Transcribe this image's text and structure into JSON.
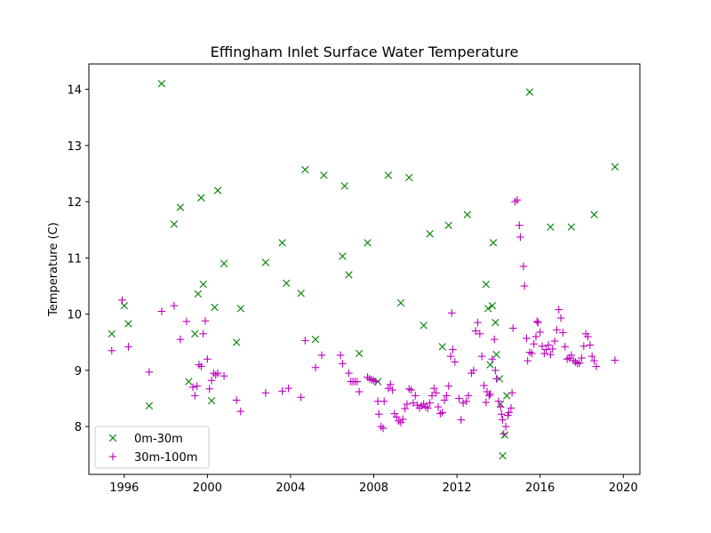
{
  "chart_data": {
    "type": "scatter",
    "title": "Effingham Inlet Surface Water Temperature",
    "xlabel": "",
    "ylabel": "Temperature (C)",
    "xlim": [
      1994.3,
      2020.8
    ],
    "ylim": [
      7.15,
      14.45
    ],
    "x_ticks": [
      1996,
      2000,
      2004,
      2008,
      2012,
      2016,
      2020
    ],
    "x_tick_labels": [
      "1996",
      "2000",
      "2004",
      "2008",
      "2012",
      "2016",
      "2020"
    ],
    "y_ticks": [
      8,
      9,
      10,
      11,
      12,
      13,
      14
    ],
    "y_tick_labels": [
      "8",
      "9",
      "10",
      "11",
      "12",
      "13",
      "14"
    ],
    "grid": false,
    "legend_position": "lower-left",
    "series": [
      {
        "name": "0m-30m",
        "marker": "x",
        "color": "#008000",
        "points": [
          [
            1995.4,
            9.65
          ],
          [
            1996.0,
            10.15
          ],
          [
            1996.2,
            9.83
          ],
          [
            1997.2,
            8.37
          ],
          [
            1997.8,
            14.1
          ],
          [
            1998.4,
            11.6
          ],
          [
            1998.7,
            11.9
          ],
          [
            1999.1,
            8.8
          ],
          [
            1999.4,
            9.65
          ],
          [
            1999.55,
            10.36
          ],
          [
            1999.7,
            12.07
          ],
          [
            1999.8,
            10.53
          ],
          [
            2000.2,
            8.46
          ],
          [
            2000.35,
            10.12
          ],
          [
            2000.5,
            12.2
          ],
          [
            2000.8,
            10.9
          ],
          [
            2001.4,
            9.5
          ],
          [
            2001.6,
            10.1
          ],
          [
            2002.8,
            10.92
          ],
          [
            2003.6,
            11.27
          ],
          [
            2003.8,
            10.55
          ],
          [
            2004.5,
            10.37
          ],
          [
            2004.7,
            12.57
          ],
          [
            2005.2,
            9.55
          ],
          [
            2005.6,
            12.47
          ],
          [
            2006.5,
            11.03
          ],
          [
            2006.6,
            12.28
          ],
          [
            2006.8,
            10.7
          ],
          [
            2007.3,
            9.3
          ],
          [
            2007.7,
            11.27
          ],
          [
            2008.2,
            8.8
          ],
          [
            2008.7,
            12.47
          ],
          [
            2009.3,
            10.2
          ],
          [
            2009.7,
            12.43
          ],
          [
            2010.4,
            9.8
          ],
          [
            2010.7,
            11.43
          ],
          [
            2011.3,
            9.42
          ],
          [
            2011.6,
            11.58
          ],
          [
            2012.5,
            11.77
          ],
          [
            2013.4,
            10.53
          ],
          [
            2013.5,
            10.1
          ],
          [
            2013.6,
            9.1
          ],
          [
            2013.7,
            10.15
          ],
          [
            2013.75,
            11.27
          ],
          [
            2013.85,
            9.85
          ],
          [
            2013.9,
            9.28
          ],
          [
            2014.05,
            8.85
          ],
          [
            2014.1,
            8.4
          ],
          [
            2014.2,
            7.48
          ],
          [
            2014.3,
            7.85
          ],
          [
            2014.4,
            8.55
          ],
          [
            2015.5,
            13.95
          ],
          [
            2016.5,
            11.55
          ],
          [
            2017.5,
            11.55
          ],
          [
            2018.6,
            11.77
          ],
          [
            2019.6,
            12.62
          ]
        ]
      },
      {
        "name": "30m-100m",
        "marker": "+",
        "color": "#bf00bf",
        "points": [
          [
            1995.4,
            9.35
          ],
          [
            1995.9,
            10.25
          ],
          [
            1996.2,
            9.42
          ],
          [
            1997.2,
            8.97
          ],
          [
            1997.8,
            10.05
          ],
          [
            1998.4,
            10.15
          ],
          [
            1998.7,
            9.55
          ],
          [
            1999.0,
            9.87
          ],
          [
            1999.3,
            8.7
          ],
          [
            1999.4,
            8.55
          ],
          [
            1999.5,
            8.72
          ],
          [
            1999.6,
            9.1
          ],
          [
            1999.7,
            9.07
          ],
          [
            1999.8,
            9.65
          ],
          [
            1999.9,
            9.88
          ],
          [
            2000.0,
            9.2
          ],
          [
            2000.1,
            8.67
          ],
          [
            2000.2,
            8.82
          ],
          [
            2000.3,
            8.95
          ],
          [
            2000.4,
            8.92
          ],
          [
            2000.5,
            8.95
          ],
          [
            2000.8,
            8.9
          ],
          [
            2001.4,
            8.47
          ],
          [
            2001.6,
            8.27
          ],
          [
            2002.8,
            8.6
          ],
          [
            2003.6,
            8.63
          ],
          [
            2003.9,
            8.68
          ],
          [
            2004.5,
            8.52
          ],
          [
            2004.7,
            9.53
          ],
          [
            2005.2,
            9.05
          ],
          [
            2005.5,
            9.27
          ],
          [
            2006.4,
            9.27
          ],
          [
            2006.5,
            9.12
          ],
          [
            2006.8,
            8.95
          ],
          [
            2006.9,
            8.8
          ],
          [
            2007.0,
            8.8
          ],
          [
            2007.1,
            8.8
          ],
          [
            2007.2,
            8.8
          ],
          [
            2007.3,
            8.62
          ],
          [
            2007.7,
            8.88
          ],
          [
            2007.8,
            8.85
          ],
          [
            2007.9,
            8.83
          ],
          [
            2008.0,
            8.82
          ],
          [
            2008.1,
            8.8
          ],
          [
            2008.2,
            8.45
          ],
          [
            2008.25,
            8.22
          ],
          [
            2008.35,
            8.0
          ],
          [
            2008.45,
            7.97
          ],
          [
            2008.5,
            8.45
          ],
          [
            2008.7,
            8.68
          ],
          [
            2008.8,
            8.75
          ],
          [
            2008.9,
            8.65
          ],
          [
            2009.0,
            8.23
          ],
          [
            2009.1,
            8.17
          ],
          [
            2009.2,
            8.1
          ],
          [
            2009.3,
            8.07
          ],
          [
            2009.4,
            8.13
          ],
          [
            2009.5,
            8.32
          ],
          [
            2009.6,
            8.4
          ],
          [
            2009.7,
            8.67
          ],
          [
            2009.8,
            8.65
          ],
          [
            2009.9,
            8.42
          ],
          [
            2010.0,
            8.55
          ],
          [
            2010.1,
            8.38
          ],
          [
            2010.2,
            8.33
          ],
          [
            2010.3,
            8.37
          ],
          [
            2010.4,
            8.4
          ],
          [
            2010.5,
            8.35
          ],
          [
            2010.6,
            8.33
          ],
          [
            2010.7,
            8.42
          ],
          [
            2010.8,
            8.55
          ],
          [
            2010.9,
            8.68
          ],
          [
            2011.0,
            8.6
          ],
          [
            2011.1,
            8.35
          ],
          [
            2011.2,
            8.23
          ],
          [
            2011.3,
            8.25
          ],
          [
            2011.4,
            8.47
          ],
          [
            2011.5,
            8.55
          ],
          [
            2011.6,
            8.72
          ],
          [
            2011.7,
            9.25
          ],
          [
            2011.75,
            10.02
          ],
          [
            2011.8,
            9.37
          ],
          [
            2011.9,
            9.15
          ],
          [
            2012.1,
            8.5
          ],
          [
            2012.2,
            8.12
          ],
          [
            2012.3,
            8.42
          ],
          [
            2012.45,
            8.45
          ],
          [
            2012.55,
            8.55
          ],
          [
            2012.7,
            8.95
          ],
          [
            2012.8,
            9.0
          ],
          [
            2012.9,
            9.7
          ],
          [
            2013.0,
            9.85
          ],
          [
            2013.1,
            9.65
          ],
          [
            2013.2,
            9.25
          ],
          [
            2013.3,
            8.73
          ],
          [
            2013.4,
            8.43
          ],
          [
            2013.45,
            8.62
          ],
          [
            2013.55,
            8.55
          ],
          [
            2013.6,
            8.58
          ],
          [
            2013.7,
            9.2
          ],
          [
            2013.8,
            9.55
          ],
          [
            2013.85,
            9.0
          ],
          [
            2013.9,
            8.85
          ],
          [
            2014.0,
            8.45
          ],
          [
            2014.1,
            8.35
          ],
          [
            2014.15,
            8.22
          ],
          [
            2014.2,
            8.12
          ],
          [
            2014.25,
            7.87
          ],
          [
            2014.35,
            8.0
          ],
          [
            2014.45,
            8.2
          ],
          [
            2014.5,
            8.25
          ],
          [
            2014.6,
            8.33
          ],
          [
            2014.65,
            8.6
          ],
          [
            2014.7,
            9.75
          ],
          [
            2014.8,
            12.0
          ],
          [
            2014.9,
            12.03
          ],
          [
            2015.0,
            11.58
          ],
          [
            2015.05,
            11.37
          ],
          [
            2015.2,
            10.85
          ],
          [
            2015.25,
            10.5
          ],
          [
            2015.35,
            9.57
          ],
          [
            2015.4,
            9.17
          ],
          [
            2015.5,
            9.32
          ],
          [
            2015.6,
            9.3
          ],
          [
            2015.7,
            9.47
          ],
          [
            2015.8,
            9.6
          ],
          [
            2015.85,
            9.87
          ],
          [
            2015.9,
            9.85
          ],
          [
            2016.0,
            9.68
          ],
          [
            2016.1,
            9.43
          ],
          [
            2016.2,
            9.3
          ],
          [
            2016.3,
            9.37
          ],
          [
            2016.4,
            9.45
          ],
          [
            2016.5,
            9.28
          ],
          [
            2016.6,
            9.38
          ],
          [
            2016.7,
            9.52
          ],
          [
            2016.8,
            9.72
          ],
          [
            2016.9,
            10.08
          ],
          [
            2017.0,
            9.93
          ],
          [
            2017.1,
            9.67
          ],
          [
            2017.2,
            9.42
          ],
          [
            2017.3,
            9.2
          ],
          [
            2017.4,
            9.22
          ],
          [
            2017.5,
            9.27
          ],
          [
            2017.6,
            9.18
          ],
          [
            2017.7,
            9.15
          ],
          [
            2017.8,
            9.12
          ],
          [
            2017.9,
            9.13
          ],
          [
            2018.0,
            9.22
          ],
          [
            2018.1,
            9.43
          ],
          [
            2018.2,
            9.65
          ],
          [
            2018.3,
            9.6
          ],
          [
            2018.4,
            9.45
          ],
          [
            2018.5,
            9.25
          ],
          [
            2018.6,
            9.17
          ],
          [
            2018.7,
            9.07
          ],
          [
            2019.6,
            9.18
          ]
        ]
      }
    ]
  }
}
